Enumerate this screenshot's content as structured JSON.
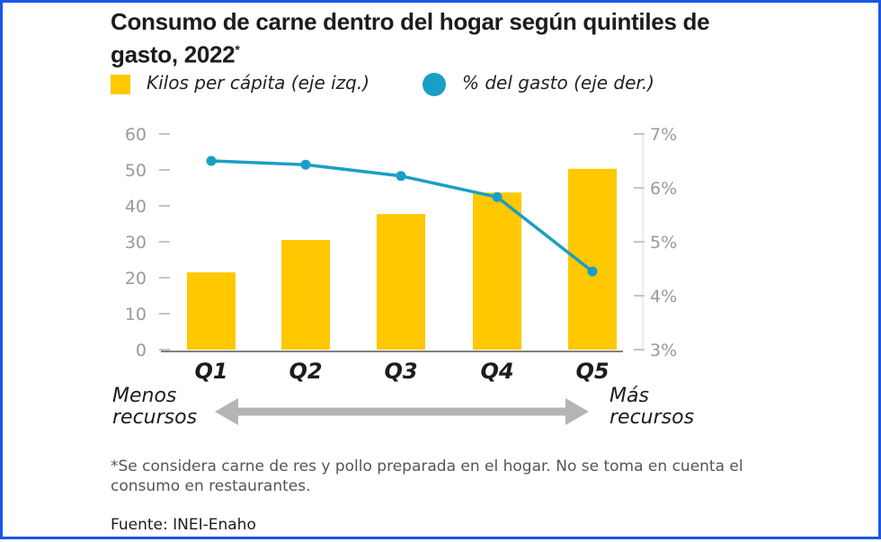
{
  "title": "Consumo de carne dentro del hogar según quintiles de gasto, 2022",
  "title_marker": "*",
  "legend": {
    "bars_label": "Kilos per cápita (eje izq.)",
    "line_label": "% del gasto (eje der.)"
  },
  "colors": {
    "bar": "#ffc800",
    "line": "#1a9fc4",
    "frame": "#1a56e8",
    "arrow": "#b5b5b5",
    "axis_text": "#9a9a9a"
  },
  "chart_data": {
    "type": "bar",
    "categories": [
      "Q1",
      "Q2",
      "Q3",
      "Q4",
      "Q5"
    ],
    "series": [
      {
        "name": "Kilos per cápita (eje izq.)",
        "type": "bar",
        "axis": "left",
        "values": [
          21.5,
          30.5,
          37.7,
          43.7,
          50.3
        ]
      },
      {
        "name": "% del gasto (eje der.)",
        "type": "line",
        "axis": "right",
        "values": [
          6.5,
          6.43,
          6.22,
          5.83,
          4.45
        ]
      }
    ],
    "y_left": {
      "lim": [
        0,
        60
      ],
      "ticks": [
        "0",
        "10",
        "20",
        "30",
        "40",
        "50",
        "60"
      ]
    },
    "y_right": {
      "lim": [
        3,
        7
      ],
      "ticks": [
        "3%",
        "4%",
        "5%",
        "6%",
        "7%"
      ]
    },
    "grid": false,
    "legend_position": "top-left"
  },
  "axis_note": {
    "left": [
      "Menos",
      "recursos"
    ],
    "right": [
      "Más",
      "recursos"
    ]
  },
  "footnote": "*Se considera carne de res y pollo preparada en el hogar. No se toma en cuenta el consumo en restaurantes.",
  "source": "Fuente: INEI-Enaho"
}
